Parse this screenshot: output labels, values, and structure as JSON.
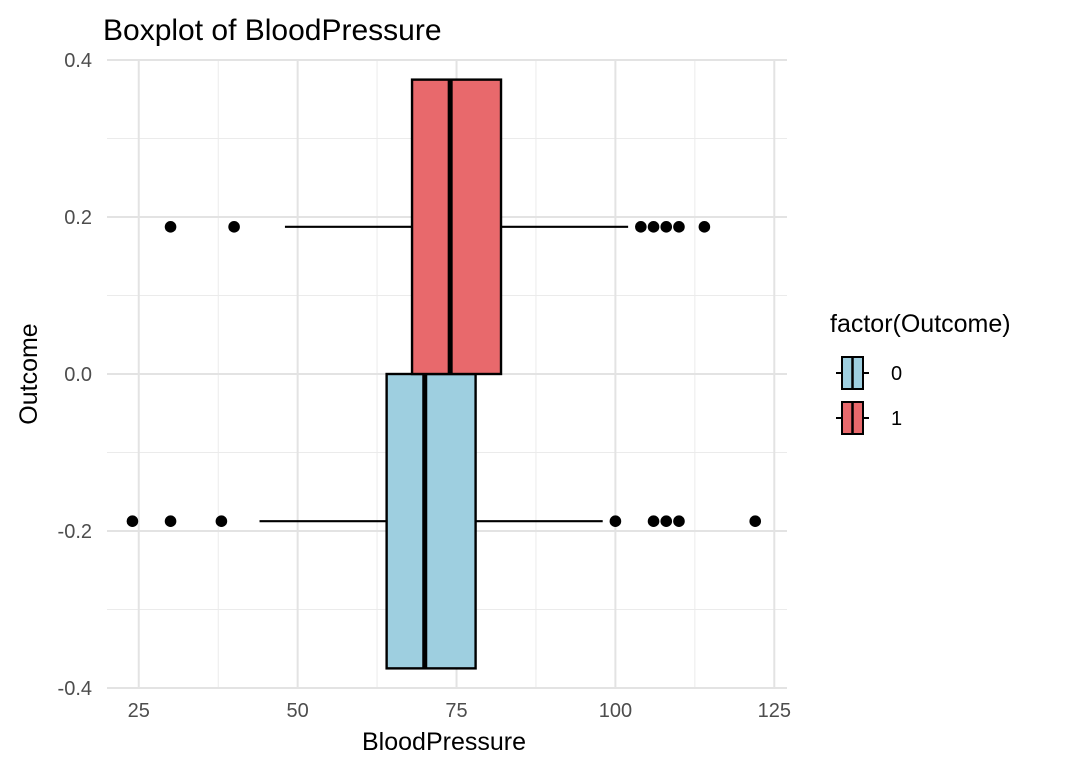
{
  "chart_data": {
    "type": "boxplot",
    "title": "Boxplot of BloodPressure",
    "xlabel": "BloodPressure",
    "ylabel": "Outcome",
    "xlim": [
      20,
      127
    ],
    "ylim": [
      -0.4,
      0.4
    ],
    "x_ticks": [
      25,
      50,
      75,
      100,
      125
    ],
    "x_tick_labels": [
      "25",
      "50",
      "75",
      "100",
      "125"
    ],
    "y_ticks": [
      -0.4,
      -0.2,
      0.0,
      0.2,
      0.4
    ],
    "y_tick_labels": [
      "-0.4",
      "-0.2",
      "0.0",
      "0.2",
      "0.4"
    ],
    "grid": true,
    "legend": {
      "title": "factor(Outcome)",
      "position": "right"
    },
    "series": [
      {
        "name": "0",
        "color": "#9ecfe0",
        "y_range": [
          -0.375,
          0.0
        ],
        "whisker_low": 44,
        "q1": 64,
        "median": 70,
        "q3": 78,
        "whisker_high": 98,
        "outliers": [
          24,
          30,
          38,
          100,
          106,
          108,
          110,
          122
        ],
        "outlier_y": -0.1875
      },
      {
        "name": "1",
        "color": "#e8696c",
        "y_range": [
          0.0,
          0.375
        ],
        "whisker_low": 48,
        "q1": 68,
        "median": 74,
        "q3": 82,
        "whisker_high": 102,
        "outliers": [
          30,
          40,
          104,
          106,
          108,
          110,
          114
        ],
        "outlier_y": 0.1875
      }
    ]
  }
}
